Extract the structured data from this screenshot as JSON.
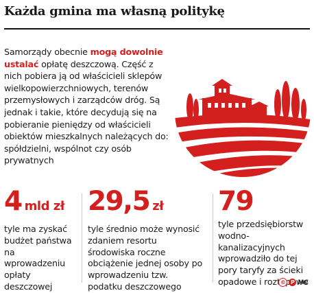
{
  "title": "Każda gmina ma własną politykę",
  "lead": {
    "text_before": "Samorządy obecnie ",
    "highlight": "mogą dowolnie ustalać",
    "text_after": " opłatę deszczową. Część z nich pobiera ją od właścicieli sklepów wielkopowierzchniowych, terenów przemysłowych i zarządców dróg. Są jednak i takie, które decydują się na pobieranie pieniędzy od właścicieli obiektów mieszkalnych należących do: spółdzielni, wspólnot czy osób prywatnych"
  },
  "stats": [
    {
      "number": "4",
      "unit": "mld zł",
      "description": "tyle ma zyskać budżet państwa na wprowadzeniu opłaty deszczowej"
    },
    {
      "number": "29,5",
      "unit": "zł",
      "description": "tyle średnio może wynosić zdaniem resortu środowiska roczne obciążenie jednej osoby po wprowadzeniu tzw. podatku deszczowego"
    },
    {
      "number": "79",
      "unit": "",
      "description": "tyle przedsiębiorstw wodno-kanalizacyjnych wprowadziło do tej pory taryfy za ścieki opadowe i roztopowe"
    }
  ],
  "credit": {
    "copyright": "©",
    "letter": "P",
    "initials": "MC"
  },
  "colors": {
    "accent": "#d3201f",
    "text": "#1a1a1a"
  },
  "illustration": "red-landscape-villa-cypress-fields"
}
